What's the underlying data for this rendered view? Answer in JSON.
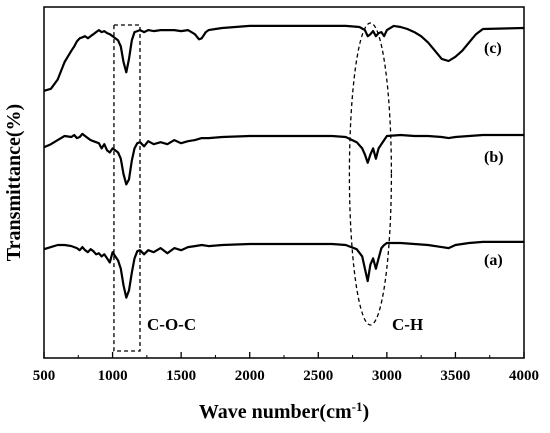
{
  "chart_data": {
    "type": "line",
    "xlabel": "Wave number(cm",
    "xlabel_sup": "-1",
    "xlabel_close": ")",
    "ylabel": "Transmittance(%)",
    "xlim": [
      500,
      4000
    ],
    "xticks": [
      "500",
      "1000",
      "1500",
      "2000",
      "2500",
      "3000",
      "3500",
      "4000"
    ],
    "yticks_visible": false,
    "grid": false,
    "series": [
      {
        "name": "(c)",
        "x": [
          500,
          550,
          600,
          650,
          700,
          720,
          740,
          760,
          780,
          800,
          820,
          840,
          860,
          880,
          900,
          920,
          940,
          960,
          980,
          1000,
          1020,
          1040,
          1060,
          1080,
          1100,
          1120,
          1140,
          1160,
          1180,
          1200,
          1230,
          1260,
          1300,
          1350,
          1400,
          1450,
          1500,
          1550,
          1600,
          1630,
          1650,
          1680,
          1700,
          1750,
          1800,
          2000,
          2300,
          2500,
          2700,
          2800,
          2840,
          2860,
          2880,
          2900,
          2920,
          2940,
          2960,
          2980,
          3000,
          3050,
          3100,
          3150,
          3200,
          3250,
          3300,
          3350,
          3400,
          3450,
          3500,
          3550,
          3600,
          3650,
          3700,
          4000
        ],
        "y": [
          27,
          29,
          38,
          55,
          66,
          70,
          75,
          78,
          79,
          80,
          78,
          80,
          82,
          84,
          86,
          84,
          85,
          83,
          82,
          80,
          78,
          76,
          70,
          55,
          45,
          58,
          76,
          84,
          85,
          86,
          84,
          86,
          85,
          86,
          86,
          86,
          85,
          86,
          82,
          77,
          78,
          84,
          86,
          87,
          88,
          90,
          90,
          90,
          90,
          89,
          86,
          80,
          82,
          85,
          80,
          83,
          84,
          80,
          86,
          90,
          89,
          87,
          84,
          80,
          74,
          66,
          58,
          56,
          60,
          66,
          74,
          82,
          87,
          88
        ]
      },
      {
        "name": "(b)",
        "x": [
          500,
          550,
          600,
          650,
          700,
          720,
          740,
          760,
          780,
          800,
          820,
          840,
          860,
          880,
          900,
          920,
          940,
          960,
          980,
          1000,
          1020,
          1040,
          1060,
          1080,
          1100,
          1120,
          1140,
          1160,
          1180,
          1200,
          1230,
          1260,
          1300,
          1350,
          1400,
          1450,
          1500,
          1550,
          1600,
          1650,
          1700,
          1800,
          2000,
          2300,
          2600,
          2700,
          2780,
          2820,
          2840,
          2860,
          2880,
          2900,
          2920,
          2940,
          2960,
          2980,
          3000,
          3100,
          3200,
          3300,
          3400,
          3450,
          3500,
          3600,
          3700,
          4000
        ],
        "y": [
          41,
          44,
          48,
          52,
          51,
          53,
          50,
          51,
          54,
          52,
          50,
          48,
          47,
          46,
          45,
          40,
          44,
          38,
          36,
          40,
          38,
          36,
          30,
          15,
          5,
          10,
          28,
          40,
          45,
          46,
          42,
          47,
          44,
          46,
          44,
          48,
          45,
          47,
          48,
          50,
          50,
          51,
          52,
          52,
          52,
          51,
          46,
          40,
          34,
          26,
          34,
          40,
          30,
          40,
          44,
          48,
          52,
          53,
          52,
          52,
          51,
          50,
          51,
          52,
          53,
          53
        ]
      },
      {
        "name": "(a)",
        "x": [
          500,
          550,
          600,
          650,
          700,
          720,
          740,
          760,
          780,
          800,
          820,
          840,
          860,
          880,
          900,
          920,
          940,
          960,
          980,
          1000,
          1020,
          1040,
          1060,
          1080,
          1100,
          1120,
          1140,
          1160,
          1180,
          1200,
          1230,
          1260,
          1300,
          1350,
          1400,
          1450,
          1500,
          1550,
          1600,
          1650,
          1700,
          1800,
          2000,
          2300,
          2600,
          2700,
          2780,
          2820,
          2840,
          2860,
          2880,
          2900,
          2920,
          2940,
          2960,
          2980,
          3000,
          3100,
          3200,
          3300,
          3400,
          3450,
          3500,
          3600,
          3700,
          4000
        ],
        "y": [
          -5,
          -3,
          -1,
          -1,
          -2,
          -3,
          -4,
          -6,
          -3,
          -6,
          -8,
          -5,
          -7,
          -10,
          -9,
          -12,
          -10,
          -14,
          -18,
          -8,
          -12,
          -16,
          -24,
          -40,
          -52,
          -45,
          -28,
          -14,
          -7,
          -6,
          -10,
          -6,
          -8,
          -4,
          -9,
          -4,
          -6,
          -3,
          -2,
          -1,
          -2,
          -1,
          0,
          0,
          0,
          -1,
          -5,
          -12,
          -24,
          -36,
          -20,
          -14,
          -24,
          -14,
          -4,
          -1,
          1,
          1,
          0,
          -1,
          -3,
          -4,
          -1,
          1,
          2,
          2
        ]
      }
    ],
    "annotations": [
      {
        "text": "C-O-C",
        "shape": "rectangle",
        "x_range": [
          1010,
          1200
        ]
      },
      {
        "text": "C-H",
        "shape": "ellipse",
        "x_center": 2880
      }
    ]
  }
}
